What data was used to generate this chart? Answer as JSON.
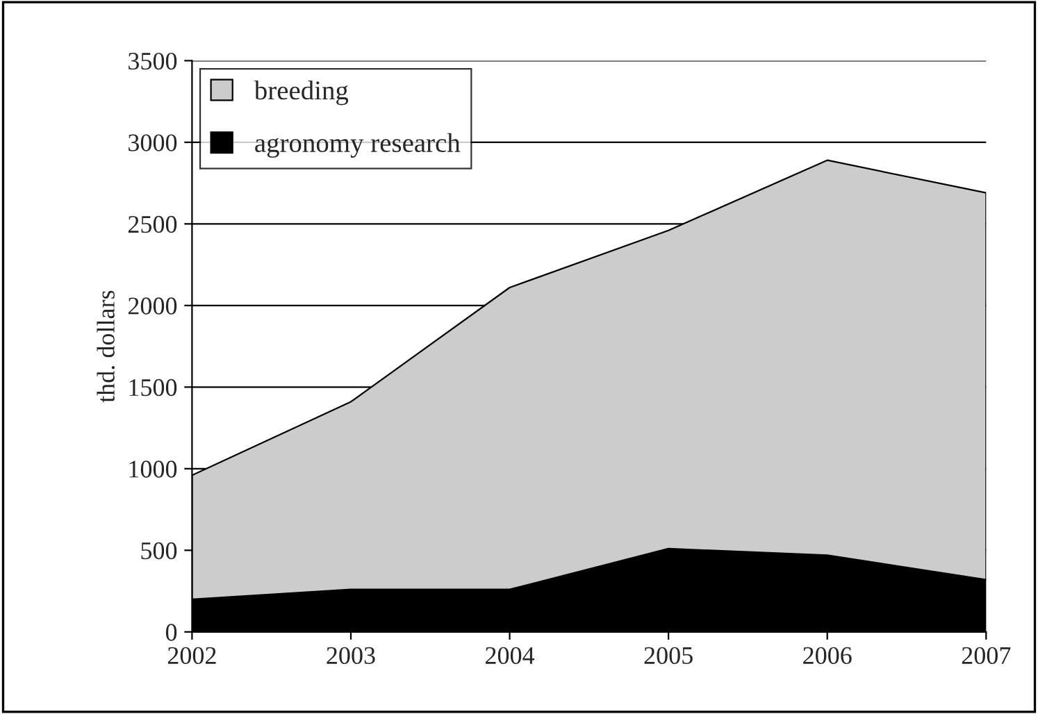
{
  "chart_data": {
    "type": "area",
    "stacked": true,
    "ylabel": "thd. dollars",
    "categories": [
      "2002",
      "2003",
      "2004",
      "2005",
      "2006",
      "2007"
    ],
    "series": [
      {
        "name": "agronomy research",
        "color": "#000000",
        "values": [
          200,
          260,
          260,
          510,
          470,
          320
        ]
      },
      {
        "name": "breeding",
        "color": "#cccccc",
        "values": [
          760,
          1150,
          1850,
          1950,
          2420,
          2370
        ]
      }
    ],
    "ylim": [
      0,
      3500
    ],
    "yticks": [
      0,
      500,
      1000,
      1500,
      2000,
      2500,
      3000,
      3500
    ],
    "grid": "y",
    "legend": "top left"
  }
}
